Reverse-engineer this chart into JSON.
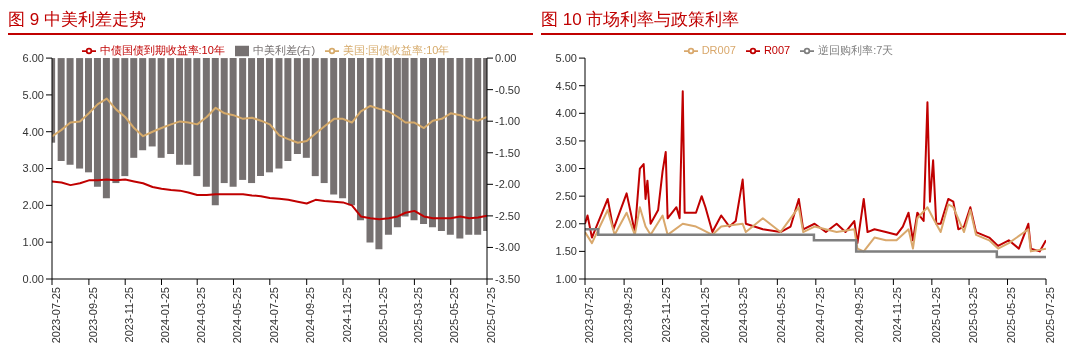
{
  "chart_data": [
    {
      "type": "line",
      "title": "图 9  中美利差走势",
      "legend": "top",
      "x": [
        "2023-07-25",
        "2023-08-10",
        "2023-08-25",
        "2023-09-10",
        "2023-09-25",
        "2023-10-10",
        "2023-10-25",
        "2023-11-10",
        "2023-11-25",
        "2023-12-10",
        "2023-12-25",
        "2024-01-10",
        "2024-01-25",
        "2024-02-10",
        "2024-02-25",
        "2024-03-10",
        "2024-03-25",
        "2024-04-10",
        "2024-04-25",
        "2024-05-10",
        "2024-05-25",
        "2024-06-10",
        "2024-06-25",
        "2024-07-10",
        "2024-07-25",
        "2024-08-10",
        "2024-08-25",
        "2024-09-10",
        "2024-09-25",
        "2024-10-10",
        "2024-10-25",
        "2024-11-10",
        "2024-11-25",
        "2024-12-10",
        "2024-12-25",
        "2025-01-10",
        "2025-01-25",
        "2025-02-10",
        "2025-02-25",
        "2025-03-10",
        "2025-03-25",
        "2025-04-10",
        "2025-04-25",
        "2025-05-10",
        "2025-05-25",
        "2025-06-10",
        "2025-06-25",
        "2025-07-10",
        "2025-07-25"
      ],
      "series": [
        {
          "name": "中美利差(右)",
          "type": "bar",
          "axis": "y2",
          "color": "#767171",
          "values": [
            -1.34,
            -1.63,
            -1.69,
            -1.75,
            -1.81,
            -2.04,
            -2.22,
            -1.98,
            -1.87,
            -1.58,
            -1.46,
            -1.4,
            -1.58,
            -1.52,
            -1.69,
            -1.69,
            -1.87,
            -2.04,
            -2.33,
            -1.98,
            -2.04,
            -1.93,
            -1.98,
            -1.87,
            -1.81,
            -1.75,
            -1.63,
            -1.52,
            -1.58,
            -1.87,
            -1.98,
            -2.16,
            -2.22,
            -2.33,
            -2.57,
            -2.92,
            -3.03,
            -2.8,
            -2.68,
            -2.51,
            -2.57,
            -2.63,
            -2.68,
            -2.74,
            -2.8,
            -2.86,
            -2.8,
            -2.8,
            -2.74
          ]
        },
        {
          "name": "中债国债到期收益率:10年",
          "color": "#c00000",
          "values": [
            2.65,
            2.62,
            2.55,
            2.6,
            2.68,
            2.68,
            2.7,
            2.68,
            2.7,
            2.65,
            2.6,
            2.5,
            2.45,
            2.42,
            2.4,
            2.35,
            2.28,
            2.28,
            2.3,
            2.3,
            2.3,
            2.3,
            2.27,
            2.25,
            2.2,
            2.18,
            2.15,
            2.1,
            2.05,
            2.15,
            2.12,
            2.1,
            2.08,
            2.0,
            1.7,
            1.65,
            1.62,
            1.65,
            1.7,
            1.8,
            1.85,
            1.7,
            1.65,
            1.65,
            1.65,
            1.7,
            1.65,
            1.67,
            1.72
          ]
        },
        {
          "name": "美国:国债收益率:10年",
          "color": "#d6aa6a",
          "values": [
            3.87,
            4.05,
            4.25,
            4.28,
            4.5,
            4.75,
            4.9,
            4.6,
            4.4,
            4.1,
            3.88,
            4.0,
            4.1,
            4.2,
            4.28,
            4.25,
            4.2,
            4.4,
            4.65,
            4.5,
            4.45,
            4.35,
            4.38,
            4.3,
            4.2,
            3.9,
            3.8,
            3.7,
            3.75,
            3.95,
            4.15,
            4.35,
            4.35,
            4.25,
            4.55,
            4.7,
            4.62,
            4.55,
            4.4,
            4.25,
            4.25,
            4.1,
            4.3,
            4.35,
            4.5,
            4.45,
            4.35,
            4.3,
            4.4
          ]
        }
      ],
      "xlim": [
        "2023-07-25",
        "2025-07-25"
      ],
      "xticks": [
        "2023-07-25",
        "2023-09-25",
        "2023-11-25",
        "2024-01-25",
        "2024-03-25",
        "2024-05-25",
        "2024-07-25",
        "2024-09-25",
        "2024-11-25",
        "2025-01-25",
        "2025-03-25",
        "2025-05-25",
        "2025-07-25"
      ],
      "ylim": [
        0,
        6
      ],
      "yticks": [
        {
          "value": 0,
          "label": "0.00"
        },
        {
          "value": 1,
          "label": "1.00"
        },
        {
          "value": 2,
          "label": "2.00"
        },
        {
          "value": 3,
          "label": "3.00"
        },
        {
          "value": 4,
          "label": "4.00"
        },
        {
          "value": 5,
          "label": "5.00"
        },
        {
          "value": 6,
          "label": "6.00"
        }
      ],
      "y2lim": [
        -3.5,
        0
      ],
      "y2ticks": [
        {
          "value": -3.5,
          "label": "-3.50"
        },
        {
          "value": -3,
          "label": "-3.00"
        },
        {
          "value": -2.5,
          "label": "-2.50"
        },
        {
          "value": -2,
          "label": "-2.00"
        },
        {
          "value": -1.5,
          "label": "-1.50"
        },
        {
          "value": -1,
          "label": "-1.00"
        },
        {
          "value": -0.5,
          "label": "-0.50"
        },
        {
          "value": 0,
          "label": "0.00"
        }
      ]
    },
    {
      "type": "line",
      "title": "图 10  市场利率与政策利率",
      "legend": "top",
      "series": [
        {
          "name": "R007",
          "color": "#c00000",
          "x": [
            "2023-07-25",
            "2023-07-29",
            "2023-08-05",
            "2023-08-30",
            "2023-09-08",
            "2023-09-29",
            "2023-10-12",
            "2023-10-20",
            "2023-10-26",
            "2023-10-29",
            "2023-11-01",
            "2023-11-06",
            "2023-11-18",
            "2023-11-25",
            "2023-11-30",
            "2023-12-03",
            "2023-12-17",
            "2023-12-22",
            "2023-12-27",
            "2023-12-30",
            "2024-01-17",
            "2024-01-26",
            "2024-02-01",
            "2024-02-12",
            "2024-02-26",
            "2024-03-10",
            "2024-03-20",
            "2024-03-31",
            "2024-04-05",
            "2024-05-02",
            "2024-05-30",
            "2024-06-15",
            "2024-06-28",
            "2024-07-05",
            "2024-07-23",
            "2024-08-10",
            "2024-08-27",
            "2024-09-10",
            "2024-09-24",
            "2024-09-29",
            "2024-10-09",
            "2024-10-15",
            "2024-10-26",
            "2024-11-13",
            "2024-11-30",
            "2024-12-10",
            "2024-12-19",
            "2024-12-26",
            "2025-01-02",
            "2025-01-12",
            "2025-01-18",
            "2025-01-22",
            "2025-01-27",
            "2025-02-01",
            "2025-02-08",
            "2025-02-20",
            "2025-02-28",
            "2025-03-08",
            "2025-03-17",
            "2025-03-27",
            "2025-04-05",
            "2025-04-26",
            "2025-05-10",
            "2025-05-27",
            "2025-06-12",
            "2025-06-27",
            "2025-07-01",
            "2025-07-15",
            "2025-07-25"
          ],
          "values": [
            2.0,
            2.15,
            1.75,
            2.45,
            1.9,
            2.55,
            1.85,
            3.0,
            3.08,
            2.45,
            2.78,
            2.0,
            2.25,
            2.95,
            3.3,
            2.1,
            2.3,
            2.1,
            4.4,
            2.2,
            2.2,
            2.5,
            2.3,
            1.85,
            2.15,
            1.95,
            2.05,
            2.8,
            2.0,
            1.9,
            1.85,
            1.95,
            2.45,
            1.9,
            2.0,
            1.85,
            2.0,
            1.85,
            2.05,
            1.65,
            2.45,
            1.85,
            1.9,
            1.85,
            1.8,
            1.95,
            2.2,
            1.7,
            2.2,
            2.05,
            4.2,
            2.4,
            3.15,
            2.0,
            2.0,
            2.45,
            2.4,
            1.9,
            1.95,
            2.3,
            1.85,
            1.75,
            1.6,
            1.7,
            1.55,
            2.0,
            1.55,
            1.5,
            1.7
          ]
        },
        {
          "name": "DR007",
          "color": "#d9a86c",
          "x": [
            "2023-07-25",
            "2023-08-05",
            "2023-08-30",
            "2023-09-10",
            "2023-09-29",
            "2023-10-12",
            "2023-10-20",
            "2023-10-29",
            "2023-11-06",
            "2023-11-25",
            "2023-12-03",
            "2023-12-27",
            "2024-01-17",
            "2024-01-26",
            "2024-02-12",
            "2024-02-26",
            "2024-03-31",
            "2024-04-05",
            "2024-05-02",
            "2024-05-30",
            "2024-06-28",
            "2024-07-05",
            "2024-07-23",
            "2024-08-27",
            "2024-09-24",
            "2024-09-29",
            "2024-10-09",
            "2024-10-26",
            "2024-11-13",
            "2024-11-30",
            "2024-12-19",
            "2024-12-26",
            "2025-01-02",
            "2025-01-18",
            "2025-01-27",
            "2025-02-08",
            "2025-02-20",
            "2025-02-28",
            "2025-03-17",
            "2025-03-27",
            "2025-04-05",
            "2025-04-26",
            "2025-05-10",
            "2025-05-27",
            "2025-06-27",
            "2025-07-01",
            "2025-07-25"
          ],
          "values": [
            1.85,
            1.65,
            2.25,
            1.8,
            2.2,
            1.8,
            2.3,
            1.95,
            1.8,
            2.15,
            1.8,
            2.0,
            1.95,
            1.9,
            1.8,
            1.95,
            2.0,
            1.85,
            2.1,
            1.85,
            2.3,
            1.85,
            1.95,
            1.85,
            1.9,
            1.55,
            1.5,
            1.75,
            1.7,
            1.7,
            1.9,
            1.55,
            2.1,
            2.3,
            2.1,
            1.85,
            2.35,
            2.3,
            1.85,
            2.25,
            1.8,
            1.7,
            1.55,
            1.65,
            1.9,
            1.5,
            1.55
          ]
        },
        {
          "name": "逆回购利率:7天",
          "type": "step",
          "color": "#7f7f7f",
          "x": [
            "2023-07-25",
            "2023-08-15",
            "2024-07-22",
            "2024-09-27",
            "2025-05-08",
            "2025-07-25"
          ],
          "values": [
            1.9,
            1.8,
            1.7,
            1.5,
            1.4,
            1.4
          ]
        }
      ],
      "xlim": [
        "2023-07-25",
        "2025-07-25"
      ],
      "xticks": [
        "2023-07-25",
        "2023-09-25",
        "2023-11-25",
        "2024-01-25",
        "2024-03-25",
        "2024-05-25",
        "2024-07-25",
        "2024-09-25",
        "2024-11-25",
        "2025-01-25",
        "2025-03-25",
        "2025-05-25",
        "2025-07-25"
      ],
      "ylim": [
        1,
        5
      ],
      "yticks": [
        {
          "value": 1,
          "label": "1.00"
        },
        {
          "value": 1.5,
          "label": "1.50"
        },
        {
          "value": 2,
          "label": "2.00"
        },
        {
          "value": 2.5,
          "label": "2.50"
        },
        {
          "value": 3,
          "label": "3.00"
        },
        {
          "value": 3.5,
          "label": "3.50"
        },
        {
          "value": 4,
          "label": "4.00"
        },
        {
          "value": 4.5,
          "label": "4.50"
        },
        {
          "value": 5,
          "label": "5.00"
        }
      ]
    }
  ]
}
